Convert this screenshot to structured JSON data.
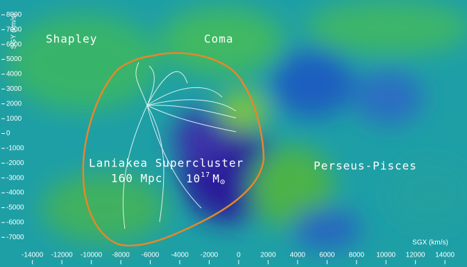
{
  "chart_data": {
    "type": "map",
    "xlabel": "SGX (km/s)",
    "ylabel": "SGY (km/s)",
    "xlim": [
      -16200,
      15500
    ],
    "ylim": [
      -9000,
      9000
    ],
    "xticks": [
      -14000,
      -12000,
      -10000,
      -8000,
      -6000,
      -4000,
      -2000,
      0,
      2000,
      4000,
      6000,
      8000,
      10000,
      12000,
      14000
    ],
    "yticks": [
      8000,
      7000,
      6000,
      5000,
      4000,
      3000,
      2000,
      1000,
      0,
      -1000,
      -2000,
      -3000,
      -4000,
      -5000,
      -6000,
      -7000
    ],
    "annotations": {
      "shapley": "Shapley",
      "coma": "Coma",
      "perseus": "Perseus-Pisces",
      "laniakea": "Laniakea Supercluster",
      "size": "160 Mpc",
      "mass": {
        "base": "10",
        "exponent": "17",
        "unit": "M",
        "symbol": "⊙"
      }
    }
  }
}
